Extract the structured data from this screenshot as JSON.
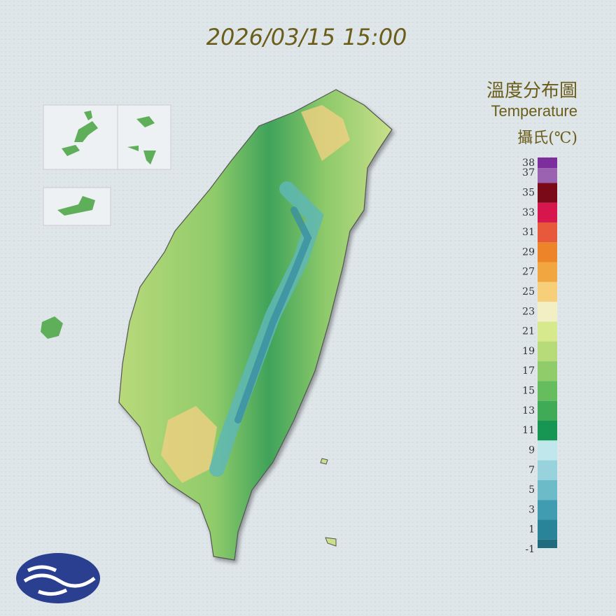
{
  "header": {
    "timestamp": "2026/03/15 15:00"
  },
  "legend": {
    "title": "溫度分布圖",
    "subtitle": "Temperature",
    "unit": "攝氏(℃)",
    "labels": [
      38,
      37,
      35,
      33,
      31,
      29,
      27,
      25,
      23,
      21,
      19,
      17,
      15,
      13,
      11,
      9,
      7,
      5,
      3,
      1,
      -1
    ],
    "colors": [
      "#7b2e9c",
      "#9c62b2",
      "#7a0a18",
      "#d6164c",
      "#e8583a",
      "#ee842a",
      "#f2a640",
      "#f6cf78",
      "#f3efc4",
      "#d6e98c",
      "#b6db78",
      "#90cd6a",
      "#66bd5e",
      "#3fab57",
      "#179552",
      "#bfe7ec",
      "#98d3dd",
      "#6cbbc9",
      "#409cb1",
      "#2a8499",
      "#1e6c7e"
    ]
  }
}
